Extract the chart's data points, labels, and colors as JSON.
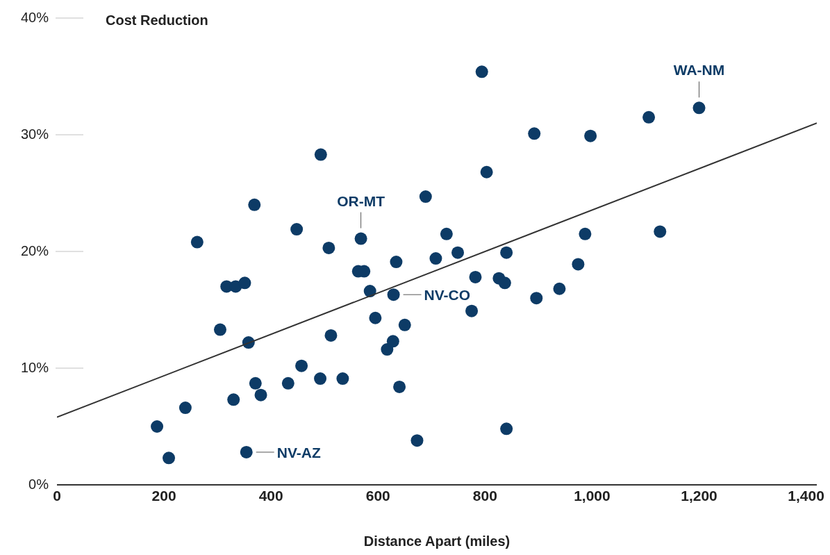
{
  "chart_data": {
    "type": "scatter",
    "ylabel": "Cost Reduction",
    "xlabel": "Distance Apart (miles)",
    "xlim": [
      0,
      1420
    ],
    "xticks": [
      0,
      200,
      400,
      600,
      800,
      {
        "value": 1000,
        "label": "1,000"
      },
      {
        "value": 1200,
        "label": "1,200"
      },
      {
        "value": 1400,
        "label": "1,400"
      }
    ],
    "ylim": [
      0,
      40
    ],
    "yticks": [
      {
        "value": 0,
        "label": "0%"
      },
      {
        "value": 10,
        "label": "10%"
      },
      {
        "value": 20,
        "label": "20%"
      },
      {
        "value": 30,
        "label": "30%"
      },
      {
        "value": 40,
        "label": "40%"
      }
    ],
    "grid": false,
    "legend": false,
    "series": [
      {
        "color": "#0d3b66",
        "marker": "circle",
        "x": [
          187,
          209,
          240,
          262,
          305,
          317,
          334,
          351,
          358,
          354,
          330,
          369,
          371,
          381,
          432,
          448,
          457,
          493,
          492,
          508,
          512,
          534,
          568,
          563,
          574,
          585,
          595,
          617,
          628,
          629,
          634,
          640,
          650,
          673,
          689,
          708,
          728,
          749,
          775,
          782,
          794,
          803,
          826,
          837,
          840,
          840,
          892,
          896,
          939,
          974,
          987,
          997,
          1106,
          1127,
          1200
        ],
        "values": [
          5.0,
          2.3,
          6.6,
          20.8,
          13.3,
          17.0,
          17.0,
          17.3,
          12.2,
          2.8,
          7.3,
          24.0,
          8.7,
          7.7,
          8.7,
          21.9,
          10.2,
          28.3,
          9.1,
          20.3,
          12.8,
          9.1,
          21.1,
          18.3,
          18.3,
          16.6,
          14.3,
          11.6,
          12.3,
          16.3,
          19.1,
          8.4,
          13.7,
          3.8,
          24.7,
          19.4,
          21.5,
          19.9,
          14.9,
          17.8,
          35.4,
          26.8,
          17.7,
          17.3,
          19.9,
          4.8,
          30.1,
          16.0,
          16.8,
          18.9,
          21.5,
          29.9,
          31.5,
          21.7,
          32.3
        ]
      },
      {
        "type": "line",
        "color": "#333333",
        "x": [
          0,
          1420
        ],
        "values": [
          5.8,
          31.0
        ]
      }
    ],
    "annotations": [
      {
        "text": "WA-NM",
        "x": 1200,
        "y": 32.3
      },
      {
        "text": "OR-MT",
        "x": 568,
        "y": 21.1
      },
      {
        "text": "NV-CO",
        "x": 629,
        "y": 16.3
      },
      {
        "text": "NV-AZ",
        "x": 354,
        "y": 2.8
      }
    ]
  }
}
